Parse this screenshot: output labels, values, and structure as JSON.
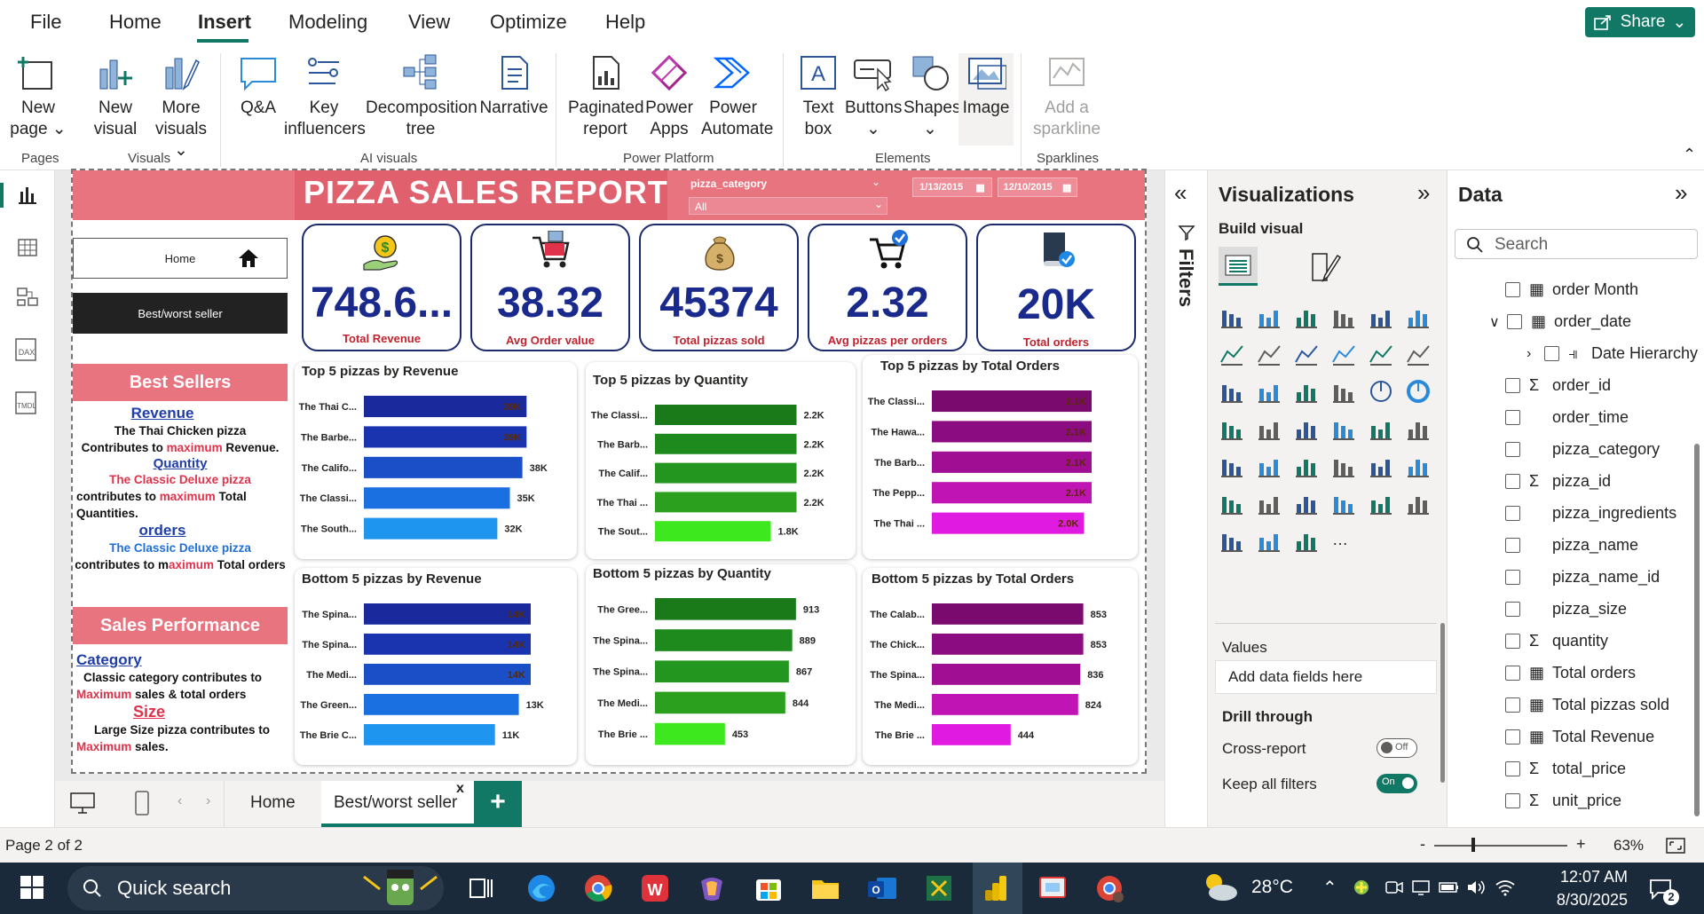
{
  "menu": {
    "file": "File",
    "home": "Home",
    "insert": "Insert",
    "modeling": "Modeling",
    "view": "View",
    "optimize": "Optimize",
    "help": "Help",
    "share": "Share"
  },
  "ribbon": {
    "new_page": [
      "New",
      "page"
    ],
    "new_visual": [
      "New",
      "visual"
    ],
    "more_visuals": [
      "More",
      "visuals"
    ],
    "qa": "Q&A",
    "key_influencers": [
      "Key",
      "influencers"
    ],
    "decomposition": [
      "Decomposition",
      "tree"
    ],
    "narrative": "Narrative",
    "paginated": [
      "Paginated",
      "report"
    ],
    "power_apps": [
      "Power",
      "Apps"
    ],
    "power_automate": [
      "Power",
      "Automate"
    ],
    "text_box": [
      "Text",
      "box"
    ],
    "buttons": "Buttons",
    "shapes": "Shapes",
    "image": "Image",
    "sparkline": [
      "Add a",
      "sparkline"
    ],
    "groups": {
      "pages": "Pages",
      "visuals": "Visuals",
      "ai": "AI visuals",
      "power_platform": "Power Platform",
      "elements": "Elements",
      "sparklines": "Sparklines"
    }
  },
  "report": {
    "title": "PIZZA SALES REPORT",
    "slicer_label": "pizza_category",
    "slicer_value": "All",
    "date_start": "1/13/2015",
    "date_end": "12/10/2015",
    "nav_home": "Home",
    "nav_best": "Best/worst seller",
    "kpis": [
      {
        "value": "748.6...",
        "label": "Total Revenue"
      },
      {
        "value": "38.32",
        "label": "Avg Order value"
      },
      {
        "value": "45374",
        "label": "Total pizzas sold"
      },
      {
        "value": "2.32",
        "label": "Avg pizzas per orders"
      },
      {
        "value": "20K",
        "label": "Total orders"
      }
    ],
    "best_sellers": {
      "header": "Best Sellers",
      "revenue_title": "Revenue",
      "revenue_line1": "The Thai Chicken pizza",
      "revenue_line2a": "Contributes to ",
      "revenue_line2b": "maximum",
      "revenue_line2c": " Revenue.",
      "quantity_title": "Quantity",
      "quantity_line1": "The Classic Deluxe pizza",
      "quantity_line2a": "contributes to ",
      "quantity_line2b": "maximum",
      "quantity_line2c": " Total",
      "quantity_line3": "Quantities.",
      "orders_title": "orders",
      "orders_line1": "The Classic Deluxe pizza",
      "orders_line2a": "contributes to  m",
      "orders_line2b": "aximum",
      "orders_line2c": " Total orders"
    },
    "sales_perf": {
      "header": "Sales Performance",
      "category_title": "Category",
      "category_line1": "Classic category contributes to",
      "category_line2a": "Maximum",
      "category_line2b": " sales & total orders",
      "size_title": "Size",
      "size_line1": "Large  Size pizza  contributes to",
      "size_line2a": "Maximum",
      "size_line2b": " sales."
    }
  },
  "chart_data": [
    {
      "type": "bar",
      "title": "Top 5 pizzas by Revenue",
      "categories": [
        "The Thai C...",
        "The Barbe...",
        "The Califo...",
        "The Classi...",
        "The South..."
      ],
      "values": [
        39,
        39,
        38,
        35,
        32
      ],
      "labels": [
        "39K",
        "39K",
        "38K",
        "35K",
        "32K"
      ],
      "xlim": [
        0,
        40
      ]
    },
    {
      "type": "bar",
      "title": "Top 5 pizzas by Quantity",
      "categories": [
        "The Classi...",
        "The Barb...",
        "The Calif...",
        "The Thai ...",
        "The Sout..."
      ],
      "values": [
        2.2,
        2.2,
        2.2,
        2.2,
        1.8
      ],
      "labels": [
        "2.2K",
        "2.2K",
        "2.2K",
        "2.2K",
        "1.8K"
      ],
      "xlim": [
        0,
        2.4
      ]
    },
    {
      "type": "bar",
      "title": "Top 5 pizzas by Total Orders",
      "categories": [
        "The Classi...",
        "The Hawa...",
        "The Barb...",
        "The Pepp...",
        "The Thai ..."
      ],
      "values": [
        2.1,
        2.1,
        2.1,
        2.1,
        2.0
      ],
      "labels": [
        "2.1K",
        "2.1K",
        "2.1K",
        "2.1K",
        "2.0K"
      ],
      "xlim": [
        0,
        2.1
      ]
    },
    {
      "type": "bar",
      "title": "Bottom 5 pizzas by Revenue",
      "categories": [
        "The Spina...",
        "The Spina...",
        "The Medi...",
        "The Green...",
        "The Brie C..."
      ],
      "values": [
        14,
        14,
        14,
        13,
        11
      ],
      "labels": [
        "14K",
        "14K",
        "14K",
        "13K",
        "11K"
      ],
      "xlim": [
        0,
        14
      ]
    },
    {
      "type": "bar",
      "title": "Bottom 5 pizzas by Quantity",
      "categories": [
        "The Gree...",
        "The Spina...",
        "The Spina...",
        "The Medi...",
        "The Brie ..."
      ],
      "values": [
        913,
        889,
        867,
        844,
        453
      ],
      "labels": [
        "913",
        "889",
        "867",
        "844",
        "453"
      ],
      "xlim": [
        0,
        1000
      ]
    },
    {
      "type": "bar",
      "title": "Bottom 5 pizzas by Total Orders",
      "categories": [
        "The Calab...",
        "The Chick...",
        "The Spina...",
        "The Medi...",
        "The Brie ..."
      ],
      "values": [
        853,
        853,
        836,
        824,
        444
      ],
      "labels": [
        "853",
        "853",
        "836",
        "824",
        "444"
      ],
      "xlim": [
        0,
        900
      ]
    }
  ],
  "colors": {
    "accent": "#117865",
    "header": "#e87480",
    "kpi_text": "#1a2a8c",
    "blue_bars": [
      "#1a2a9c",
      "#1a34b0",
      "#1a4fc8",
      "#1a70e0",
      "#1e96f0"
    ],
    "green_bars": [
      "#1a7a1a",
      "#1e8a1e",
      "#22961e",
      "#2aa01e",
      "#3ee81e"
    ],
    "purple_bars": [
      "#7a0a6e",
      "#8a0c80",
      "#a00e94",
      "#c014b4",
      "#e01ae0"
    ]
  },
  "panes": {
    "filters": "Filters",
    "viz_title": "Visualizations",
    "build_visual": "Build visual",
    "values": "Values",
    "add_fields": "Add data fields here",
    "drill_through": "Drill through",
    "cross_report": "Cross-report",
    "cross_state": "Off",
    "keep_filters": "Keep all filters",
    "keep_state": "On",
    "data_title": "Data",
    "search_placeholder": "Search",
    "fields": [
      "order Month",
      "order_date",
      "Date Hierarchy",
      "order_id",
      "order_time",
      "pizza_category",
      "pizza_id",
      "pizza_ingredients",
      "pizza_name",
      "pizza_name_id",
      "pizza_size",
      "quantity",
      "Total orders",
      "Total pizzas sold",
      "Total Revenue",
      "total_price",
      "unit_price"
    ]
  },
  "tabs": {
    "home": "Home",
    "best": "Best/worst seller",
    "close": "x",
    "add": "+"
  },
  "status": {
    "page": "Page 2 of 2",
    "zoom": "63%",
    "minus": "-",
    "plus": "+"
  },
  "taskbar": {
    "search": "Quick search",
    "weather": "28°C",
    "time": "12:07 AM",
    "date": "8/30/2025",
    "notif": "2"
  }
}
